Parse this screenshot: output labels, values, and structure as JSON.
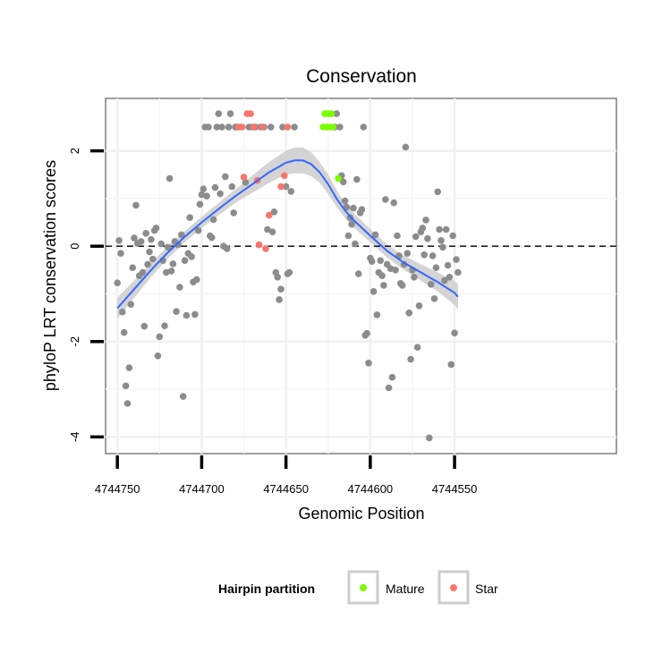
{
  "chart_data": {
    "type": "scatter",
    "title": "Conservation",
    "xlabel": "Genomic Position",
    "ylabel": "phyloP LRT conservation scores",
    "x_reversed": true,
    "xlim": [
      4744454,
      4744757
    ],
    "ylim": [
      -4.35,
      3.1
    ],
    "x_ticks": [
      4744750,
      4744700,
      4744650,
      4744600,
      4744550
    ],
    "x_tick_labels": [
      "4744750",
      "4744700",
      "4744650",
      "4744600",
      "4744550"
    ],
    "y_ticks": [
      2,
      0,
      -2,
      -4
    ],
    "y_tick_labels": [
      "2",
      "0",
      "-2",
      "-4"
    ],
    "reference_line": {
      "y": 0,
      "style": "dashed"
    },
    "grid": true,
    "legend": {
      "title": "Hairpin partition",
      "position": "bottom",
      "entries": [
        {
          "label": "Mature",
          "color": "#7CFC00"
        },
        {
          "label": "Star",
          "color": "#F8766D"
        }
      ]
    },
    "colors": {
      "other": "#8C8C8C",
      "Mature": "#7CFC00",
      "Star": "#F8766D",
      "smooth": "#3366FF",
      "ribbon": "#CCCCCC"
    },
    "series": [
      {
        "name": "",
        "points": [
          [
            4744750,
            -0.77
          ],
          [
            4744749,
            0.12
          ],
          [
            4744748,
            -0.15
          ],
          [
            4744747,
            -1.38
          ],
          [
            4744746,
            -1.81
          ],
          [
            4744745,
            -2.93
          ],
          [
            4744744,
            -3.3
          ],
          [
            4744743,
            -2.55
          ],
          [
            4744742,
            -1.22
          ],
          [
            4744741,
            -0.45
          ],
          [
            4744740,
            0.17
          ],
          [
            4744739,
            0.86
          ],
          [
            4744738,
            0.06
          ],
          [
            4744737,
            -0.62
          ],
          [
            4744736,
            0.1
          ],
          [
            4744735,
            -0.55
          ],
          [
            4744734,
            -1.68
          ],
          [
            4744733,
            0.27
          ],
          [
            4744732,
            -0.38
          ],
          [
            4744731,
            -0.12
          ],
          [
            4744730,
            0.14
          ],
          [
            4744729,
            -0.27
          ],
          [
            4744728,
            0.33
          ],
          [
            4744727,
            0.38
          ],
          [
            4744726,
            -2.3
          ],
          [
            4744725,
            -1.9
          ],
          [
            4744724,
            0.05
          ],
          [
            4744723,
            -0.3
          ],
          [
            4744722,
            -1.67
          ],
          [
            4744721,
            -0.55
          ],
          [
            4744720,
            -0.02
          ],
          [
            4744719,
            1.42
          ],
          [
            4744718,
            -0.52
          ],
          [
            4744717,
            -0.37
          ],
          [
            4744716,
            0.1
          ],
          [
            4744715,
            -1.37
          ],
          [
            4744714,
            0.03
          ],
          [
            4744713,
            -0.86
          ],
          [
            4744712,
            0.24
          ],
          [
            4744711,
            -3.15
          ],
          [
            4744710,
            -0.3
          ],
          [
            4744709,
            -1.45
          ],
          [
            4744708,
            -0.15
          ],
          [
            4744707,
            0.6
          ],
          [
            4744706,
            -0.22
          ],
          [
            4744705,
            -0.75
          ],
          [
            4744704,
            -1.43
          ],
          [
            4744703,
            -0.7
          ],
          [
            4744702,
            0.33
          ],
          [
            4744701,
            0.88
          ],
          [
            4744700,
            1.08
          ],
          [
            4744699,
            1.2
          ],
          [
            4744698,
            2.5
          ],
          [
            4744697,
            1.05
          ],
          [
            4744696,
            2.5
          ],
          [
            4744695,
            0.22
          ],
          [
            4744694,
            0.18
          ],
          [
            4744693,
            0.56
          ],
          [
            4744692,
            1.23
          ],
          [
            4744691,
            2.5
          ],
          [
            4744690,
            2.78
          ],
          [
            4744689,
            1.1
          ],
          [
            4744688,
            2.5
          ],
          [
            4744687,
            0.0
          ],
          [
            4744686,
            1.46
          ],
          [
            4744685,
            -0.05
          ],
          [
            4744684,
            2.5
          ],
          [
            4744683,
            2.78
          ],
          [
            4744682,
            1.25
          ],
          [
            4744681,
            0.7
          ],
          [
            4744680,
            2.5
          ],
          [
            4744679,
            2.5
          ],
          [
            4744677,
            2.5
          ],
          [
            4744674,
            1.34
          ],
          [
            4744672,
            2.5
          ],
          [
            4744670,
            2.5
          ],
          [
            4744668,
            2.5
          ],
          [
            4744665,
            2.5
          ],
          [
            4744663,
            2.5
          ],
          [
            4744661,
            0.35
          ],
          [
            4744659,
            2.5
          ],
          [
            4744658,
            0.3
          ],
          [
            4744657,
            0.72
          ],
          [
            4744656,
            -0.55
          ],
          [
            4744655,
            -0.65
          ],
          [
            4744654,
            -1.12
          ],
          [
            4744653,
            -0.9
          ],
          [
            4744652,
            2.5
          ],
          [
            4744650,
            1.25
          ],
          [
            4744649,
            -0.58
          ],
          [
            4744648,
            -0.55
          ],
          [
            4744647,
            1.15
          ],
          [
            4744645,
            2.5
          ],
          [
            4744621,
            2.5
          ],
          [
            4744620,
            2.78
          ],
          [
            4744618,
            2.5
          ],
          [
            4744617,
            1.48
          ],
          [
            4744616,
            1.35
          ],
          [
            4744615,
            0.95
          ],
          [
            4744614,
            0.82
          ],
          [
            4744613,
            0.22
          ],
          [
            4744612,
            0.6
          ],
          [
            4744611,
            0.46
          ],
          [
            4744610,
            0.8
          ],
          [
            4744609,
            0.05
          ],
          [
            4744608,
            1.4
          ],
          [
            4744607,
            -0.58
          ],
          [
            4744606,
            0.7
          ],
          [
            4744605,
            0.77
          ],
          [
            4744604,
            2.5
          ],
          [
            4744603,
            -1.87
          ],
          [
            4744602,
            -1.83
          ],
          [
            4744601,
            -2.45
          ],
          [
            4744600,
            -0.25
          ],
          [
            4744599,
            -0.32
          ],
          [
            4744598,
            -0.95
          ],
          [
            4744597,
            0.24
          ],
          [
            4744596,
            -1.44
          ],
          [
            4744595,
            -0.55
          ],
          [
            4744594,
            -0.3
          ],
          [
            4744593,
            -0.62
          ],
          [
            4744592,
            -0.82
          ],
          [
            4744591,
            0.98
          ],
          [
            4744590,
            -0.38
          ],
          [
            4744589,
            -2.97
          ],
          [
            4744588,
            -0.47
          ],
          [
            4744587,
            -2.75
          ],
          [
            4744586,
            0.91
          ],
          [
            4744585,
            -0.5
          ],
          [
            4744584,
            0.22
          ],
          [
            4744583,
            -0.2
          ],
          [
            4744582,
            -0.78
          ],
          [
            4744581,
            -0.82
          ],
          [
            4744580,
            -0.38
          ],
          [
            4744579,
            2.08
          ],
          [
            4744578,
            -0.15
          ],
          [
            4744577,
            -1.4
          ],
          [
            4744576,
            -2.37
          ],
          [
            4744575,
            -0.5
          ],
          [
            4744574,
            -0.65
          ],
          [
            4744573,
            0.2
          ],
          [
            4744572,
            -2.12
          ],
          [
            4744571,
            -1.25
          ],
          [
            4744570,
            0.3
          ],
          [
            4744569,
            0.38
          ],
          [
            4744568,
            -0.18
          ],
          [
            4744567,
            0.55
          ],
          [
            4744566,
            0.16
          ],
          [
            4744565,
            -4.02
          ],
          [
            4744564,
            -0.8
          ],
          [
            4744563,
            -0.2
          ],
          [
            4744562,
            -1.1
          ],
          [
            4744561,
            -0.45
          ],
          [
            4744560,
            1.14
          ],
          [
            4744559,
            0.35
          ],
          [
            4744558,
            0.12
          ],
          [
            4744557,
            -0.02
          ],
          [
            4744556,
            -0.72
          ],
          [
            4744555,
            0.35
          ],
          [
            4744554,
            -0.4
          ],
          [
            4744553,
            -0.65
          ],
          [
            4744552,
            -2.48
          ],
          [
            4744551,
            0.22
          ],
          [
            4744550,
            -1.82
          ],
          [
            4744549,
            -0.28
          ],
          [
            4744548,
            -0.55
          ]
        ]
      },
      {
        "name": "Star",
        "points": [
          [
            4744678,
            2.5
          ],
          [
            4744676,
            2.5
          ],
          [
            4744675,
            1.45
          ],
          [
            4744673,
            2.78
          ],
          [
            4744671,
            2.78
          ],
          [
            4744669,
            2.5
          ],
          [
            4744667,
            1.38
          ],
          [
            4744666,
            0.03
          ],
          [
            4744664,
            2.5
          ],
          [
            4744662,
            -0.05
          ],
          [
            4744660,
            0.65
          ],
          [
            4744653,
            1.25
          ],
          [
            4744651,
            1.48
          ],
          [
            4744649,
            2.5
          ]
        ]
      },
      {
        "name": "Mature",
        "points": [
          [
            4744628,
            2.5
          ],
          [
            4744627,
            2.78
          ],
          [
            4744626,
            2.5
          ],
          [
            4744625,
            2.78
          ],
          [
            4744624,
            2.5
          ],
          [
            4744623,
            2.78
          ],
          [
            4744622,
            2.5
          ],
          [
            4744619,
            1.42
          ]
        ]
      }
    ],
    "smooth": {
      "x": [
        4744750,
        4744740,
        4744730,
        4744720,
        4744710,
        4744700,
        4744690,
        4744680,
        4744670,
        4744660,
        4744650,
        4744645,
        4744640,
        4744635,
        4744630,
        4744625,
        4744620,
        4744615,
        4744610,
        4744600,
        4744590,
        4744580,
        4744570,
        4744560,
        4744550,
        4744548
      ],
      "y": [
        -1.3,
        -0.9,
        -0.5,
        -0.13,
        0.2,
        0.5,
        0.78,
        1.05,
        1.3,
        1.55,
        1.75,
        1.8,
        1.8,
        1.72,
        1.55,
        1.3,
        1.0,
        0.75,
        0.55,
        0.22,
        -0.1,
        -0.35,
        -0.55,
        -0.75,
        -0.98,
        -1.06
      ],
      "se": [
        0.22,
        0.18,
        0.15,
        0.13,
        0.12,
        0.12,
        0.13,
        0.14,
        0.18,
        0.22,
        0.25,
        0.27,
        0.27,
        0.25,
        0.22,
        0.2,
        0.18,
        0.16,
        0.15,
        0.14,
        0.14,
        0.15,
        0.17,
        0.2,
        0.25,
        0.27
      ]
    }
  }
}
